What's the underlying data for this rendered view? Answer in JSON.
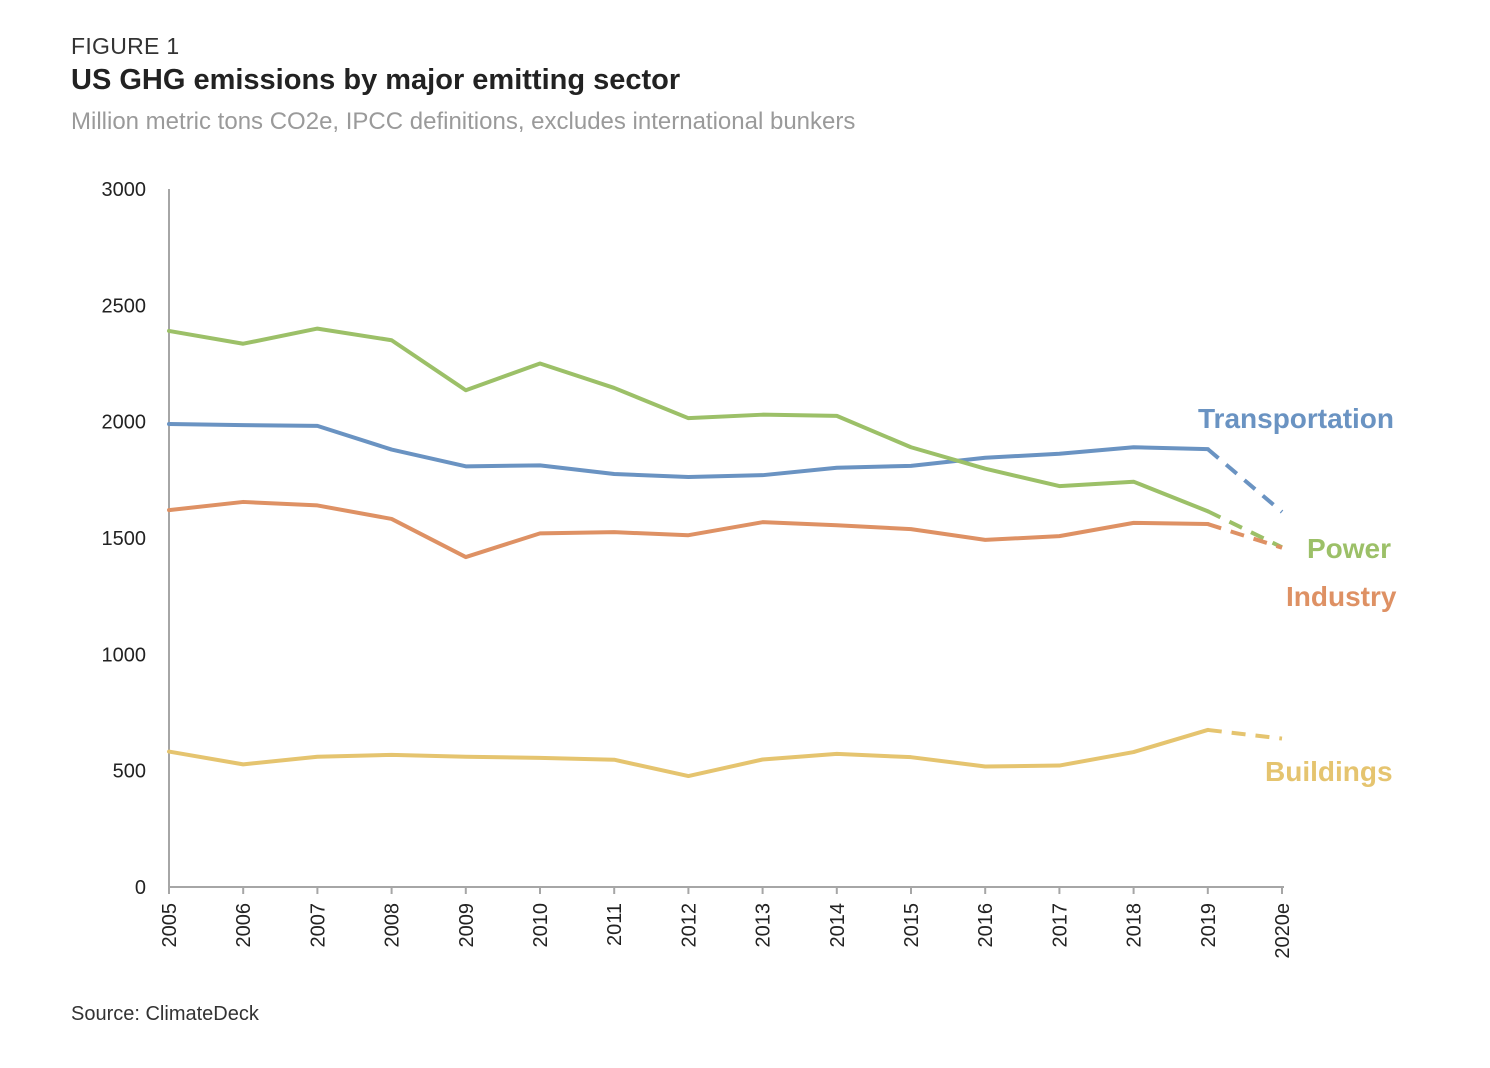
{
  "header": {
    "figure_label": "FIGURE 1",
    "title": "US GHG emissions by major emitting sector",
    "subtitle": "Million metric tons CO2e, IPCC definitions, excludes international bunkers"
  },
  "footer": {
    "source": "Source: ClimateDeck"
  },
  "chart_data": {
    "type": "line",
    "title": "US GHG emissions by major emitting sector",
    "subtitle": "Million metric tons CO2e, IPCC definitions, excludes international bunkers",
    "xlabel": "",
    "ylabel": "",
    "categories": [
      "2005",
      "2006",
      "2007",
      "2008",
      "2009",
      "2010",
      "2011",
      "2012",
      "2013",
      "2014",
      "2015",
      "2016",
      "2017",
      "2018",
      "2019",
      "2020e"
    ],
    "yticks": [
      0,
      500,
      1000,
      1500,
      2000,
      2500,
      3000
    ],
    "ylim": [
      0,
      3000
    ],
    "grid": false,
    "estimate_from_index": 14,
    "series": [
      {
        "name": "Transportation",
        "color": "#6a93c2",
        "values": [
          1990,
          1985,
          1982,
          1880,
          1808,
          1812,
          1775,
          1762,
          1770,
          1802,
          1810,
          1845,
          1862,
          1890,
          1882,
          1612
        ]
      },
      {
        "name": "Power",
        "color": "#9cc068",
        "values": [
          2390,
          2335,
          2400,
          2350,
          2135,
          2250,
          2145,
          2015,
          2030,
          2025,
          1890,
          1798,
          1723,
          1742,
          1615,
          1460
        ]
      },
      {
        "name": "Industry",
        "color": "#de9164",
        "values": [
          1620,
          1655,
          1640,
          1582,
          1418,
          1520,
          1525,
          1512,
          1568,
          1555,
          1538,
          1492,
          1508,
          1565,
          1560,
          1458
        ]
      },
      {
        "name": "Buildings",
        "color": "#e5c46f",
        "values": [
          582,
          527,
          560,
          568,
          560,
          555,
          547,
          477,
          548,
          572,
          558,
          518,
          522,
          580,
          675,
          638
        ]
      }
    ]
  }
}
